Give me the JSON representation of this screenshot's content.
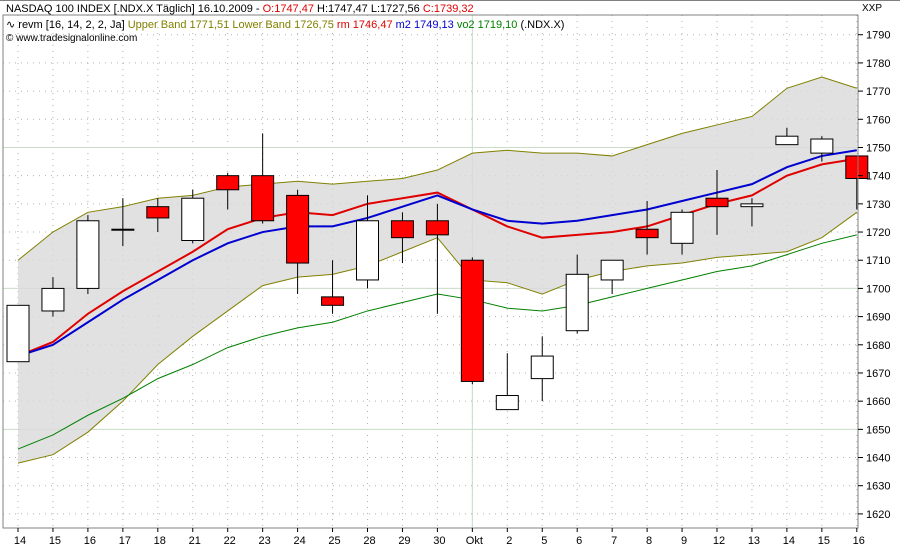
{
  "header": {
    "line1": {
      "instrument": "NASDAQ 100 INDEX [.NDX.X  Täglich] 16.10.2009 -",
      "open_label": "O:1747,47",
      "high_low": "H:1747,47 L:1727,56",
      "close_label": "C:1739,32"
    },
    "line2": {
      "indicator": "revm [16, 14, 2, 2, Ja]",
      "upper_band": "Upper Band 1771,51",
      "lower_band": "Lower Band 1726,75",
      "rm": "rm 1746,47",
      "m2": "m2 1749,13",
      "vo2": "vo2 1719,10",
      "symbol": "(.NDX.X)"
    },
    "line3": "© www.tradesignalonline.com",
    "corner_label": "XXP"
  },
  "colors": {
    "up_candle": "#ffffff",
    "down_candle": "#ff0000",
    "band_fill": "#d9d9d9",
    "band_line": "#808000",
    "rm": "#e00000",
    "m2": "#0000d0",
    "vo2": "#008000",
    "grid": "#c8dcc8"
  },
  "chart_data": {
    "type": "candlestick",
    "x_tick_labels": [
      "14",
      "15",
      "16",
      "17",
      "18",
      "21",
      "22",
      "23",
      "24",
      "25",
      "28",
      "29",
      "30",
      "Okt",
      "2",
      "5",
      "6",
      "7",
      "8",
      "9",
      "12",
      "13",
      "14",
      "15",
      "16"
    ],
    "candles": [
      {
        "o": 1674,
        "h": 1694,
        "l": 1674,
        "c": 1694
      },
      {
        "o": 1692,
        "h": 1704,
        "l": 1690,
        "c": 1700
      },
      {
        "o": 1700,
        "h": 1726,
        "l": 1698,
        "c": 1724
      },
      {
        "o": 1721,
        "h": 1732,
        "l": 1715,
        "c": 1721
      },
      {
        "o": 1729,
        "h": 1732,
        "l": 1720,
        "c": 1725
      },
      {
        "o": 1717,
        "h": 1735,
        "l": 1716,
        "c": 1732
      },
      {
        "o": 1740,
        "h": 1741,
        "l": 1728,
        "c": 1735
      },
      {
        "o": 1740,
        "h": 1755,
        "l": 1723,
        "c": 1724
      },
      {
        "o": 1733,
        "h": 1735,
        "l": 1698,
        "c": 1709
      },
      {
        "o": 1697,
        "h": 1710,
        "l": 1691,
        "c": 1694
      },
      {
        "o": 1703,
        "h": 1733,
        "l": 1700,
        "c": 1724
      },
      {
        "o": 1724,
        "h": 1727,
        "l": 1709,
        "c": 1718
      },
      {
        "o": 1724,
        "h": 1730,
        "l": 1691,
        "c": 1719
      },
      {
        "o": 1710,
        "h": 1711,
        "l": 1666,
        "c": 1667
      },
      {
        "o": 1657,
        "h": 1677,
        "l": 1657,
        "c": 1662
      },
      {
        "o": 1668,
        "h": 1683,
        "l": 1660,
        "c": 1676
      },
      {
        "o": 1685,
        "h": 1712,
        "l": 1684,
        "c": 1705
      },
      {
        "o": 1703,
        "h": 1710,
        "l": 1698,
        "c": 1710
      },
      {
        "o": 1721,
        "h": 1731,
        "l": 1712,
        "c": 1718
      },
      {
        "o": 1716,
        "h": 1728,
        "l": 1712,
        "c": 1727
      },
      {
        "o": 1732,
        "h": 1742,
        "l": 1719,
        "c": 1729
      },
      {
        "o": 1729,
        "h": 1732,
        "l": 1722,
        "c": 1730
      },
      {
        "o": 1751,
        "h": 1757,
        "l": 1751,
        "c": 1754
      },
      {
        "o": 1748,
        "h": 1754,
        "l": 1745,
        "c": 1753
      },
      {
        "o": 1747,
        "h": 1747,
        "l": 1728,
        "c": 1739
      }
    ],
    "series": [
      {
        "name": "rm",
        "values": [
          1676,
          1681,
          1691,
          1699,
          1706,
          1713,
          1721,
          1725,
          1727,
          1726,
          1730,
          1732,
          1734,
          1728,
          1722,
          1718,
          1719,
          1720,
          1722,
          1726,
          1730,
          1733,
          1740,
          1744,
          1746
        ]
      },
      {
        "name": "m2",
        "values": [
          1676,
          1680,
          1688,
          1696,
          1703,
          1710,
          1716,
          1720,
          1722,
          1722,
          1725,
          1729,
          1733,
          1728,
          1724,
          1723,
          1724,
          1726,
          1728,
          1731,
          1734,
          1737,
          1743,
          1747,
          1749
        ]
      },
      {
        "name": "Upper Band",
        "values": [
          1710,
          1720,
          1727,
          1729,
          1732,
          1733,
          1736,
          1737,
          1738,
          1737,
          1738,
          1739,
          1742,
          1748,
          1749,
          1748,
          1748,
          1747,
          1751,
          1755,
          1758,
          1761,
          1771,
          1775,
          1771
        ]
      },
      {
        "name": "Lower Band",
        "values": [
          1638,
          1641,
          1649,
          1660,
          1673,
          1683,
          1692,
          1701,
          1704,
          1705,
          1708,
          1713,
          1718,
          1703,
          1702,
          1698,
          1703,
          1706,
          1708,
          1709,
          1711,
          1712,
          1713,
          1718,
          1727
        ]
      },
      {
        "name": "vo2",
        "values": [
          1643,
          1648,
          1655,
          1661,
          1668,
          1673,
          1679,
          1683,
          1686,
          1688,
          1692,
          1695,
          1698,
          1696,
          1693,
          1692,
          1694,
          1697,
          1700,
          1703,
          1706,
          1708,
          1712,
          1716,
          1719
        ]
      }
    ],
    "y_ticks": [
      1620,
      1630,
      1640,
      1650,
      1660,
      1670,
      1680,
      1690,
      1700,
      1710,
      1720,
      1730,
      1740,
      1750,
      1760,
      1770,
      1780,
      1790
    ],
    "ylim": [
      1615,
      1797
    ],
    "highlight_y": [
      1750,
      1700,
      1650
    ],
    "highlight_x_label": "Okt",
    "grid": true
  }
}
